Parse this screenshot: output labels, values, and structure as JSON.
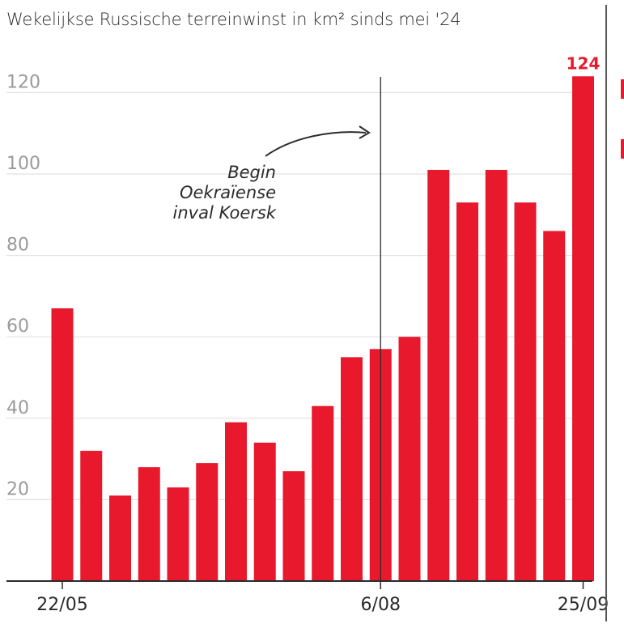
{
  "title": "Wekelijkse Russische terreinwinst in km² sinds mei '24",
  "chart_data": {
    "type": "bar",
    "title": "Wekelijkse Russische terreinwinst in km² sinds mei '24",
    "xlabel": "",
    "ylabel": "",
    "ylim": [
      0,
      124
    ],
    "yticks": [
      "20",
      "40",
      "60",
      "80",
      "100",
      "120"
    ],
    "x_tick_labels": [
      {
        "index": 0,
        "label": "22/05"
      },
      {
        "index": 11,
        "label": "6/08"
      },
      {
        "index": 18,
        "label": "25/09"
      }
    ],
    "values": [
      67,
      32,
      21,
      28,
      23,
      29,
      39,
      34,
      27,
      43,
      55,
      57,
      60,
      101,
      93,
      101,
      93,
      86,
      124
    ],
    "bar_color": "#e8192c",
    "peak_label": "124",
    "grid": "horizontal",
    "annotation": {
      "lines": [
        "Begin",
        "Oekraïense",
        "inval Koersk"
      ],
      "marker_index": 11
    }
  }
}
